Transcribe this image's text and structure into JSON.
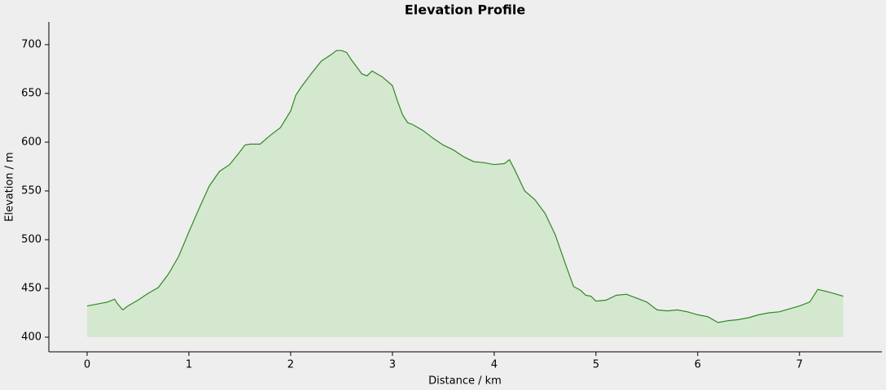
{
  "chart_data": {
    "type": "area",
    "title": "Elevation Profile",
    "x_label": "Distance / km",
    "y_label": "Elevation / m",
    "x": [
      0,
      0.1,
      0.2,
      0.27,
      0.3,
      0.35,
      0.4,
      0.5,
      0.6,
      0.7,
      0.8,
      0.9,
      1.0,
      1.1,
      1.2,
      1.3,
      1.4,
      1.5,
      1.55,
      1.6,
      1.7,
      1.8,
      1.9,
      2.0,
      2.05,
      2.1,
      2.2,
      2.3,
      2.4,
      2.45,
      2.5,
      2.55,
      2.6,
      2.7,
      2.75,
      2.8,
      2.9,
      3.0,
      3.05,
      3.1,
      3.15,
      3.2,
      3.3,
      3.4,
      3.5,
      3.6,
      3.7,
      3.8,
      3.9,
      4.0,
      4.1,
      4.15,
      4.2,
      4.3,
      4.4,
      4.5,
      4.6,
      4.7,
      4.78,
      4.85,
      4.9,
      4.95,
      5.0,
      5.1,
      5.2,
      5.3,
      5.4,
      5.5,
      5.6,
      5.7,
      5.8,
      5.9,
      6.0,
      6.1,
      6.2,
      6.3,
      6.4,
      6.5,
      6.6,
      6.7,
      6.8,
      6.9,
      7.0,
      7.1,
      7.18,
      7.3,
      7.43
    ],
    "values": [
      432,
      434,
      436,
      439,
      434,
      428,
      432,
      438,
      445,
      451,
      465,
      483,
      508,
      532,
      555,
      570,
      577,
      590,
      597,
      598,
      598,
      607,
      615,
      632,
      648,
      656,
      670,
      683,
      690,
      694,
      694,
      692,
      684,
      670,
      668,
      673,
      667,
      658,
      642,
      628,
      620,
      618,
      612,
      604,
      597,
      592,
      585,
      580,
      579,
      577,
      578,
      582,
      572,
      550,
      541,
      527,
      505,
      475,
      452,
      448,
      443,
      442,
      437,
      438,
      443,
      444,
      440,
      436,
      428,
      427,
      428,
      426,
      423,
      421,
      415,
      417,
      418,
      420,
      423,
      425,
      426,
      429,
      432,
      436,
      449,
      446,
      442
    ],
    "area_baseline": 400,
    "color": "#2f8a22",
    "fill_color": "#d4e8cf",
    "xlim": [
      -0.376,
      7.81
    ],
    "ylim": [
      385,
      723.3
    ],
    "xticks": [
      0,
      1,
      2,
      3,
      4,
      5,
      6,
      7
    ],
    "yticks": [
      400,
      450,
      500,
      550,
      600,
      650,
      700
    ]
  }
}
